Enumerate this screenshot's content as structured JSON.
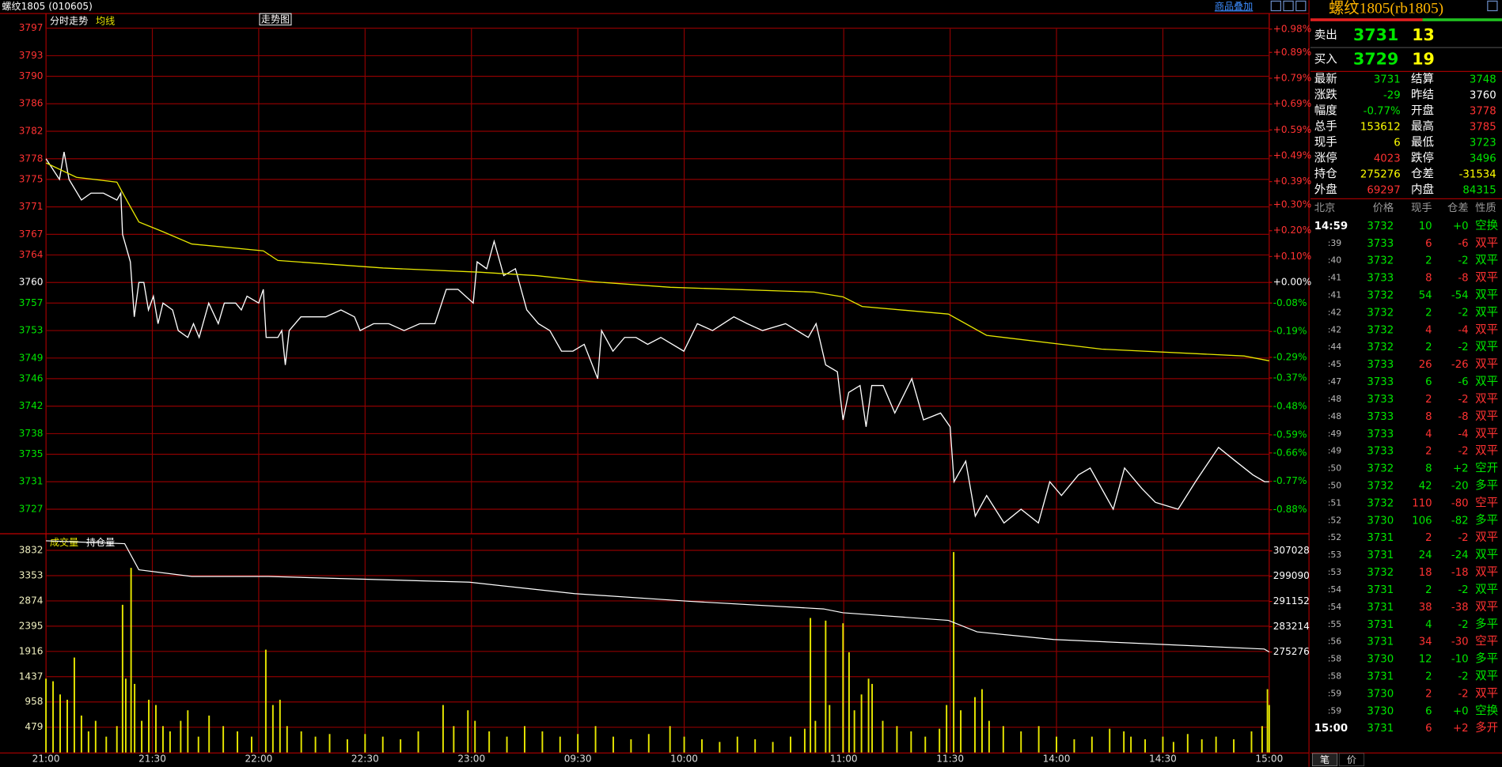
{
  "header": {
    "title": "螺纹1805 (010605)",
    "overlay": "商品叠加"
  },
  "chart_data": [
    {
      "type": "line",
      "mode_label": "分时走势",
      "badge": "走势图",
      "xlim": [
        0,
        345
      ],
      "xticks": [
        {
          "value": 0,
          "label": "21:00"
        },
        {
          "value": 30,
          "label": "21:30"
        },
        {
          "value": 60,
          "label": "22:00"
        },
        {
          "value": 90,
          "label": "22:30"
        },
        {
          "value": 120,
          "label": "23:00"
        },
        {
          "value": 150,
          "label": "09:30"
        },
        {
          "value": 180,
          "label": "10:00"
        },
        {
          "value": 225,
          "label": "11:00"
        },
        {
          "value": 255,
          "label": "11:30"
        },
        {
          "value": 285,
          "label": "14:00"
        },
        {
          "value": 315,
          "label": "14:30"
        },
        {
          "value": 345,
          "label": "15:00"
        }
      ],
      "ylim": [
        3723.5,
        3796.9
      ],
      "yticks": [
        3797,
        3793,
        3790,
        3786,
        3782,
        3778,
        3775,
        3771,
        3767,
        3764,
        3760,
        3757,
        3753,
        3749,
        3746,
        3742,
        3738,
        3735,
        3731,
        3727
      ],
      "y2lim": [
        -0.971,
        0.981
      ],
      "y2ticks": [
        {
          "value": 0.98,
          "label": "+0.98%"
        },
        {
          "value": 0.89,
          "label": "+0.89%"
        },
        {
          "value": 0.79,
          "label": "+0.79%"
        },
        {
          "value": 0.69,
          "label": "+0.69%"
        },
        {
          "value": 0.59,
          "label": "+0.59%"
        },
        {
          "value": 0.49,
          "label": "+0.49%"
        },
        {
          "value": 0.39,
          "label": "+0.39%"
        },
        {
          "value": 0.3,
          "label": "+0.30%"
        },
        {
          "value": 0.2,
          "label": "+0.20%"
        },
        {
          "value": 0.1,
          "label": "+0.10%"
        },
        {
          "value": 0,
          "label": "+0.00%"
        },
        {
          "value": -0.08,
          "label": "-0.08%"
        },
        {
          "value": -0.19,
          "label": "-0.19%"
        },
        {
          "value": -0.29,
          "label": "-0.29%"
        },
        {
          "value": -0.37,
          "label": "-0.37%"
        },
        {
          "value": -0.48,
          "label": "-0.48%"
        },
        {
          "value": -0.59,
          "label": "-0.59%"
        },
        {
          "value": -0.66,
          "label": "-0.66%"
        },
        {
          "value": -0.77,
          "label": "-0.77%"
        },
        {
          "value": -0.88,
          "label": "-0.88%"
        }
      ],
      "grid": true,
      "series": [
        {
          "color": "#ffffff",
          "x": [
            0,
            3.8,
            5.1,
            6.5,
            10,
            12.7,
            16.2,
            20,
            21.1,
            21.6,
            23.8,
            24.9,
            26.2,
            27.6,
            28.9,
            30.3,
            31.6,
            33,
            35.7,
            37.3,
            40,
            41.6,
            43.2,
            45.9,
            48.6,
            50.3,
            53.5,
            55.1,
            56.7,
            60,
            61.3,
            62.1,
            65.4,
            66.5,
            67.5,
            68.6,
            71.9,
            75.1,
            78.9,
            83.2,
            87,
            88.6,
            92.4,
            96.7,
            101,
            105.4,
            109.7,
            112.9,
            116.2,
            120.5,
            121.6,
            124.3,
            126.4,
            129.1,
            132.4,
            135.6,
            138.9,
            142.1,
            145.4,
            148.6,
            151.8,
            155.6,
            156.7,
            159.9,
            163.2,
            166.4,
            169.7,
            173.4,
            179.9,
            183.7,
            188,
            194,
            197.8,
            202.1,
            208.6,
            215,
            217.2,
            219.9,
            223.2,
            224.8,
            226.4,
            229.6,
            231.3,
            232.9,
            236.1,
            239.4,
            244.2,
            247.5,
            252.3,
            255,
            256.1,
            259.4,
            262.1,
            265.3,
            270.2,
            275,
            279.9,
            283.1,
            286.4,
            291.2,
            294.5,
            301,
            304.2,
            309.1,
            312.9,
            319.3,
            324.2,
            330.7,
            335.5,
            340.4,
            343.7,
            345
          ],
          "values": [
            3778,
            3775,
            3779,
            3775,
            3772,
            3773,
            3773,
            3772,
            3773,
            3767,
            3763,
            3755,
            3760,
            3760,
            3756,
            3758,
            3754,
            3757,
            3756,
            3753,
            3752,
            3754,
            3752,
            3757,
            3754,
            3757,
            3757,
            3756,
            3758,
            3757,
            3759,
            3752,
            3752,
            3753,
            3748,
            3753,
            3755,
            3755,
            3755,
            3756,
            3755,
            3753,
            3754,
            3754,
            3753,
            3754,
            3754,
            3759,
            3759,
            3757,
            3763,
            3762,
            3766,
            3761,
            3762,
            3756,
            3754,
            3753,
            3750,
            3750,
            3751,
            3746,
            3753,
            3750,
            3752,
            3752,
            3751,
            3752,
            3750,
            3754,
            3753,
            3755,
            3754,
            3753,
            3754,
            3752,
            3754,
            3748,
            3747,
            3740,
            3744,
            3745,
            3739,
            3745,
            3745,
            3741,
            3746,
            3740,
            3741,
            3739,
            3731,
            3734,
            3726,
            3729,
            3725,
            3727,
            3725,
            3731,
            3729,
            3732,
            3733,
            3727,
            3733,
            3730,
            3728,
            3727,
            3731,
            3736,
            3734,
            3732,
            3731,
            3731
          ]
        },
        {
          "name": "均线",
          "color": "#e6e600",
          "x": [
            0,
            8.6,
            20,
            22.2,
            26.2,
            32.9,
            41.1,
            61.3,
            65.4,
            95.1,
            122.1,
            138.3,
            154.5,
            176.1,
            216.6,
            224.8,
            230.2,
            254.5,
            265.3,
            297.7,
            337.9,
            345
          ],
          "values": [
            3777.4,
            3775.3,
            3774.6,
            3772.5,
            3768.8,
            3767.4,
            3765.6,
            3764.6,
            3763.2,
            3762.1,
            3761.5,
            3761.0,
            3760.1,
            3759.3,
            3758.6,
            3757.9,
            3756.5,
            3755.4,
            3752.3,
            3750.3,
            3749.3,
            3748.6
          ]
        }
      ]
    },
    {
      "type": "bar",
      "xlim": [
        0,
        345
      ],
      "ylim": [
        0,
        4065
      ],
      "yticks": [
        3832,
        3353,
        2874,
        2395,
        1916,
        1437,
        958,
        479
      ],
      "y2lim": [
        243704,
        311057
      ],
      "y2ticks": [
        307028,
        299090,
        291152,
        283214,
        275276
      ],
      "grid": true,
      "series": [
        {
          "name": "成交量",
          "color": "#e6e600",
          "x": [
            0,
            2,
            4,
            6,
            8,
            10,
            12,
            14,
            17,
            20,
            21.6,
            22.5,
            24,
            25,
            27,
            29,
            31,
            33,
            35,
            38,
            40,
            43,
            46,
            50,
            54,
            58,
            62,
            64,
            66,
            68,
            72,
            76,
            80,
            85,
            90,
            95,
            100,
            105,
            112,
            115,
            119,
            121,
            125,
            130,
            135,
            140,
            145,
            150,
            155,
            160,
            165,
            170,
            176,
            180,
            185,
            190,
            195,
            200,
            205,
            210,
            214,
            215.6,
            217,
            219.9,
            221,
            224.8,
            226.5,
            228,
            230,
            232,
            233,
            236,
            240,
            244,
            248,
            252,
            254,
            256,
            258,
            262,
            264,
            266,
            270,
            275,
            280,
            285,
            290,
            295,
            300,
            304,
            306,
            310,
            315,
            318,
            322,
            326,
            330,
            335,
            340,
            343,
            344.5,
            345
          ],
          "values": [
            1400,
            1350,
            1100,
            1000,
            1800,
            700,
            400,
            600,
            300,
            500,
            2800,
            1400,
            3500,
            1300,
            600,
            1000,
            900,
            500,
            400,
            600,
            800,
            300,
            700,
            500,
            400,
            300,
            1950,
            900,
            1000,
            500,
            400,
            300,
            350,
            250,
            350,
            300,
            250,
            400,
            900,
            500,
            800,
            600,
            400,
            300,
            500,
            400,
            300,
            350,
            500,
            300,
            250,
            350,
            500,
            300,
            250,
            200,
            300,
            250,
            200,
            300,
            450,
            2550,
            600,
            2500,
            900,
            2450,
            1900,
            800,
            1100,
            1400,
            1300,
            600,
            500,
            400,
            300,
            450,
            900,
            3800,
            800,
            1050,
            1200,
            600,
            500,
            400,
            500,
            300,
            250,
            300,
            450,
            400,
            300,
            250,
            300,
            200,
            350,
            250,
            300,
            250,
            400,
            500,
            1200,
            900
          ]
        },
        {
          "name": "持仓量",
          "color": "#ffffff",
          "axis": "y2",
          "x": [
            0,
            22.2,
            26.2,
            41.1,
            62.7,
            119.4,
            149.1,
            181.5,
            219.3,
            224.8,
            254.5,
            262.6,
            284.2,
            343.6,
            345
          ],
          "values": [
            310200,
            309300,
            301100,
            299000,
            299000,
            297200,
            293600,
            291200,
            288800,
            287600,
            285200,
            281600,
            279200,
            276200,
            275276
          ]
        }
      ]
    }
  ],
  "quote": {
    "title": "螺纹1805(rb1805)",
    "ask": {
      "label": "卖出",
      "price": 3731,
      "volume": 13
    },
    "bid": {
      "label": "买入",
      "price": 3729,
      "volume": 19
    },
    "stats": [
      {
        "label": "最新",
        "value": "3731",
        "color": "#00e600",
        "label2": "结算",
        "value2": "3748",
        "color2": "#00e600"
      },
      {
        "label": "涨跌",
        "value": "-29",
        "color": "#00e600",
        "label2": "昨结",
        "value2": "3760",
        "color2": "#ffffff"
      },
      {
        "label": "幅度",
        "value": "-0.77%",
        "color": "#00e600",
        "label2": "开盘",
        "value2": "3778",
        "color2": "#ff3232"
      },
      {
        "label": "总手",
        "value": "153612",
        "color": "#ffff00",
        "label2": "最高",
        "value2": "3785",
        "color2": "#ff3232"
      },
      {
        "label": "现手",
        "value": "6",
        "color": "#ffff00",
        "label2": "最低",
        "value2": "3723",
        "color2": "#00e600"
      },
      {
        "label": "涨停",
        "value": "4023",
        "color": "#ff3232",
        "label2": "跌停",
        "value2": "3496",
        "color2": "#00e600"
      },
      {
        "label": "持仓",
        "value": "275276",
        "color": "#ffff00",
        "label2": "仓差",
        "value2": "-31534",
        "color2": "#ffff00"
      },
      {
        "label": "外盘",
        "value": "69297",
        "color": "#ff3232",
        "label2": "内盘",
        "value2": "84315",
        "color2": "#00e600"
      }
    ]
  },
  "trades": {
    "columns": [
      "北京",
      "价格",
      "现手",
      "仓差",
      "性质"
    ],
    "rows": [
      [
        "14:59",
        "3732",
        "10",
        "+0",
        "空换"
      ],
      [
        ":39",
        "3733",
        "6",
        "-6",
        "双平"
      ],
      [
        ":40",
        "3732",
        "2",
        "-2",
        "双平"
      ],
      [
        ":41",
        "3733",
        "8",
        "-8",
        "双平"
      ],
      [
        ":41",
        "3732",
        "54",
        "-54",
        "双平"
      ],
      [
        ":42",
        "3732",
        "2",
        "-2",
        "双平"
      ],
      [
        ":42",
        "3732",
        "4",
        "-4",
        "双平"
      ],
      [
        ":44",
        "3732",
        "2",
        "-2",
        "双平"
      ],
      [
        ":45",
        "3733",
        "26",
        "-26",
        "双平"
      ],
      [
        ":47",
        "3733",
        "6",
        "-6",
        "双平"
      ],
      [
        ":48",
        "3733",
        "2",
        "-2",
        "双平"
      ],
      [
        ":48",
        "3733",
        "8",
        "-8",
        "双平"
      ],
      [
        ":49",
        "3733",
        "4",
        "-4",
        "双平"
      ],
      [
        ":49",
        "3733",
        "2",
        "-2",
        "双平"
      ],
      [
        ":50",
        "3732",
        "8",
        "+2",
        "空开"
      ],
      [
        ":50",
        "3732",
        "42",
        "-20",
        "多平"
      ],
      [
        ":51",
        "3732",
        "110",
        "-80",
        "空平"
      ],
      [
        ":52",
        "3730",
        "106",
        "-82",
        "多平"
      ],
      [
        ":52",
        "3731",
        "2",
        "-2",
        "双平"
      ],
      [
        ":53",
        "3731",
        "24",
        "-24",
        "双平"
      ],
      [
        ":53",
        "3732",
        "18",
        "-18",
        "双平"
      ],
      [
        ":54",
        "3731",
        "2",
        "-2",
        "双平"
      ],
      [
        ":54",
        "3731",
        "38",
        "-38",
        "双平"
      ],
      [
        ":55",
        "3731",
        "4",
        "-2",
        "多平"
      ],
      [
        ":56",
        "3731",
        "34",
        "-30",
        "空平"
      ],
      [
        ":58",
        "3730",
        "12",
        "-10",
        "多平"
      ],
      [
        ":58",
        "3731",
        "2",
        "-2",
        "双平"
      ],
      [
        ":59",
        "3730",
        "2",
        "-2",
        "双平"
      ],
      [
        ":59",
        "3730",
        "6",
        "+0",
        "空换"
      ],
      [
        "15:00",
        "3731",
        "6",
        "+2",
        "多开"
      ]
    ],
    "colors": [
      "#00e600",
      "#ff3232",
      "#00e600",
      "#ff3232",
      "#00e600",
      "#00e600",
      "#ff3232",
      "#00e600",
      "#ff3232",
      "#00e600",
      "#ff3232",
      "#ff3232",
      "#ff3232",
      "#ff3232",
      "#00e600",
      "#00e600",
      "#ff3232",
      "#00e600",
      "#ff3232",
      "#00e600",
      "#ff3232",
      "#00e600",
      "#ff3232",
      "#00e600",
      "#ff3232",
      "#00e600",
      "#00e600",
      "#ff3232",
      "#00e600",
      "#ff3232"
    ],
    "tabs": [
      "笔",
      "价"
    ]
  }
}
